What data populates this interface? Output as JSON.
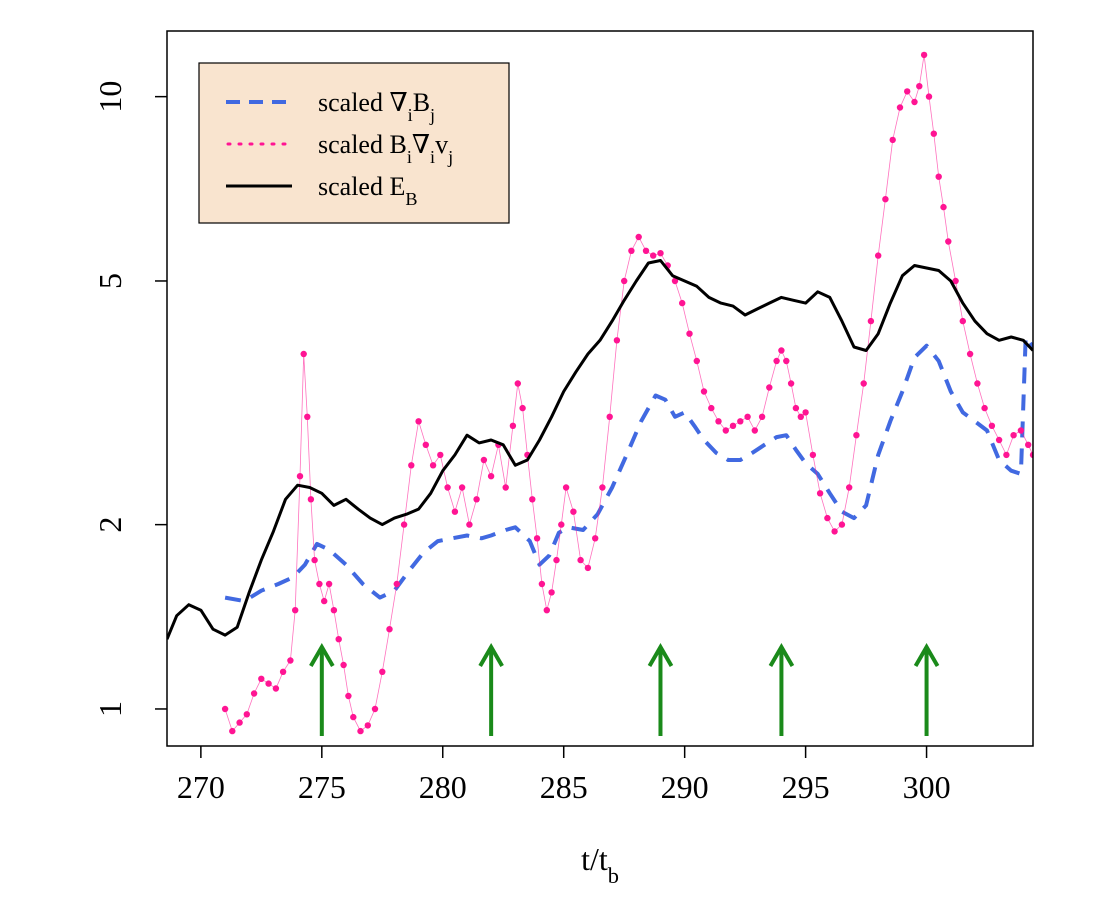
{
  "chart_data": {
    "type": "line",
    "xlabel": "t/t_b",
    "ylabel": "",
    "xlim": [
      268.6,
      304.4
    ],
    "ylim": [
      0.87,
      12.8
    ],
    "yscale": "log",
    "grid": false,
    "legend_placement": "top-left",
    "x_ticks": [
      270,
      275,
      280,
      285,
      290,
      295,
      300
    ],
    "y_ticks": [
      1,
      2,
      5,
      10
    ],
    "colors": {
      "grad_b": "#4169e1",
      "b_grad_v": "#ff1493",
      "energy": "#000000",
      "arrows": "#1a8a1a",
      "legend_bg": "#f9e4cf"
    },
    "legend": [
      {
        "parts": [
          [
            "scaled ∇",
            ""
          ],
          [
            "i",
            "sub"
          ],
          [
            "B",
            ""
          ],
          [
            "j",
            "sub"
          ]
        ]
      },
      {
        "parts": [
          [
            "scaled B",
            ""
          ],
          [
            "i",
            "sub"
          ],
          [
            "∇",
            ""
          ],
          [
            "i",
            "sub"
          ],
          [
            "v",
            ""
          ],
          [
            "j",
            "sub"
          ]
        ]
      },
      {
        "parts": [
          [
            "scaled E",
            ""
          ],
          [
            "B",
            "sub"
          ]
        ]
      }
    ],
    "x_label_parts": [
      [
        "t/t",
        ""
      ],
      [
        "b",
        "sub"
      ]
    ],
    "series": [
      {
        "key": "grad_b",
        "style": "dashed",
        "x": [
          271.0,
          271.8,
          272.5,
          273.2,
          273.8,
          274.3,
          274.8,
          275.3,
          276.0,
          276.7,
          277.4,
          278.0,
          278.6,
          279.2,
          279.8,
          280.4,
          281.0,
          281.6,
          282.0,
          282.6,
          283.0,
          283.6,
          284.0,
          284.4,
          284.8,
          285.2,
          285.8,
          286.4,
          287.0,
          287.6,
          288.2,
          288.8,
          289.2,
          289.6,
          290.0,
          290.4,
          290.8,
          291.3,
          291.8,
          292.3,
          292.8,
          293.3,
          293.8,
          294.2,
          294.6,
          295.0,
          295.5,
          296.0,
          296.5,
          297.0,
          297.5,
          298.0,
          298.5,
          299.0,
          299.5,
          300.0,
          300.5,
          301.0,
          301.5,
          302.0,
          302.5,
          303.0,
          303.5,
          303.9,
          304.1,
          304.4
        ],
        "y": [
          1.52,
          1.5,
          1.56,
          1.6,
          1.64,
          1.72,
          1.86,
          1.82,
          1.72,
          1.6,
          1.52,
          1.56,
          1.68,
          1.8,
          1.88,
          1.9,
          1.92,
          1.9,
          1.92,
          1.96,
          1.98,
          1.88,
          1.72,
          1.78,
          1.94,
          1.98,
          1.96,
          2.08,
          2.3,
          2.6,
          2.95,
          3.25,
          3.2,
          3.0,
          3.05,
          2.9,
          2.75,
          2.62,
          2.55,
          2.55,
          2.62,
          2.7,
          2.78,
          2.8,
          2.65,
          2.52,
          2.42,
          2.25,
          2.1,
          2.05,
          2.15,
          2.6,
          2.95,
          3.3,
          3.75,
          3.92,
          3.7,
          3.3,
          3.05,
          2.95,
          2.85,
          2.55,
          2.45,
          2.42,
          4.05,
          3.9
        ]
      },
      {
        "key": "b_grad_v",
        "style": "points",
        "x": [
          271.0,
          271.3,
          271.6,
          271.9,
          272.2,
          272.5,
          272.8,
          273.1,
          273.4,
          273.7,
          273.9,
          274.1,
          274.25,
          274.4,
          274.55,
          274.7,
          274.9,
          275.1,
          275.3,
          275.5,
          275.7,
          275.9,
          276.1,
          276.3,
          276.6,
          276.9,
          277.2,
          277.5,
          277.8,
          278.1,
          278.4,
          278.7,
          279.0,
          279.3,
          279.6,
          279.9,
          280.2,
          280.5,
          280.8,
          281.1,
          281.4,
          281.7,
          282.0,
          282.3,
          282.6,
          282.9,
          283.1,
          283.3,
          283.5,
          283.7,
          283.9,
          284.1,
          284.3,
          284.5,
          284.7,
          284.9,
          285.1,
          285.4,
          285.7,
          286.0,
          286.3,
          286.6,
          286.9,
          287.2,
          287.5,
          287.8,
          288.1,
          288.4,
          288.7,
          289.0,
          289.3,
          289.6,
          289.9,
          290.2,
          290.5,
          290.8,
          291.1,
          291.4,
          291.7,
          292.0,
          292.3,
          292.6,
          292.9,
          293.2,
          293.5,
          293.8,
          294.0,
          294.2,
          294.4,
          294.6,
          294.8,
          295.0,
          295.3,
          295.6,
          295.9,
          296.2,
          296.5,
          296.8,
          297.1,
          297.4,
          297.7,
          298.0,
          298.3,
          298.6,
          298.9,
          299.2,
          299.5,
          299.7,
          299.9,
          300.1,
          300.3,
          300.5,
          300.7,
          300.9,
          301.2,
          301.5,
          301.8,
          302.1,
          302.4,
          302.7,
          303.0,
          303.3,
          303.6,
          303.9,
          304.2,
          304.4
        ],
        "y": [
          1.0,
          0.92,
          0.95,
          0.98,
          1.06,
          1.12,
          1.1,
          1.08,
          1.15,
          1.2,
          1.45,
          2.4,
          3.8,
          3.0,
          2.2,
          1.75,
          1.6,
          1.5,
          1.6,
          1.45,
          1.3,
          1.18,
          1.05,
          0.97,
          0.92,
          0.94,
          1.0,
          1.15,
          1.35,
          1.6,
          2.0,
          2.5,
          2.95,
          2.7,
          2.5,
          2.6,
          2.3,
          2.1,
          2.3,
          2.0,
          2.2,
          2.55,
          2.4,
          2.7,
          2.3,
          2.9,
          3.4,
          3.1,
          2.6,
          2.2,
          1.9,
          1.6,
          1.45,
          1.55,
          1.75,
          2.0,
          2.3,
          2.1,
          1.75,
          1.7,
          1.9,
          2.3,
          3.0,
          4.0,
          5.0,
          5.6,
          5.9,
          5.6,
          5.5,
          5.55,
          5.3,
          5.0,
          4.6,
          4.1,
          3.7,
          3.3,
          3.1,
          2.95,
          2.85,
          2.9,
          2.95,
          3.0,
          2.85,
          3.0,
          3.35,
          3.7,
          3.85,
          3.7,
          3.4,
          3.1,
          3.0,
          3.05,
          2.6,
          2.25,
          2.05,
          1.95,
          2.0,
          2.3,
          2.8,
          3.4,
          4.3,
          5.5,
          6.8,
          8.5,
          9.6,
          10.2,
          9.8,
          10.4,
          11.7,
          10.0,
          8.7,
          7.4,
          6.6,
          5.8,
          5.0,
          4.3,
          3.8,
          3.4,
          3.1,
          2.9,
          2.75,
          2.6,
          2.8,
          2.85,
          2.7,
          2.6
        ]
      },
      {
        "key": "energy",
        "style": "solid",
        "x": [
          268.6,
          269.0,
          269.5,
          270.0,
          270.5,
          271.0,
          271.5,
          272.0,
          272.5,
          273.0,
          273.5,
          274.0,
          274.5,
          275.0,
          275.5,
          276.0,
          276.5,
          277.0,
          277.5,
          278.0,
          278.5,
          279.0,
          279.5,
          280.0,
          280.5,
          281.0,
          281.5,
          282.0,
          282.5,
          283.0,
          283.5,
          284.0,
          284.5,
          285.0,
          285.5,
          286.0,
          286.5,
          287.0,
          287.5,
          288.0,
          288.5,
          289.0,
          289.5,
          290.0,
          290.5,
          291.0,
          291.5,
          292.0,
          292.5,
          293.0,
          293.5,
          294.0,
          294.5,
          295.0,
          295.5,
          296.0,
          296.5,
          297.0,
          297.5,
          298.0,
          298.5,
          299.0,
          299.5,
          300.0,
          300.5,
          301.0,
          301.5,
          302.0,
          302.5,
          303.0,
          303.5,
          304.0,
          304.4
        ],
        "y": [
          1.3,
          1.42,
          1.48,
          1.45,
          1.35,
          1.32,
          1.36,
          1.55,
          1.75,
          1.95,
          2.2,
          2.32,
          2.3,
          2.25,
          2.15,
          2.2,
          2.12,
          2.05,
          2.0,
          2.05,
          2.08,
          2.12,
          2.25,
          2.45,
          2.6,
          2.8,
          2.72,
          2.75,
          2.7,
          2.5,
          2.55,
          2.75,
          3.0,
          3.3,
          3.55,
          3.8,
          4.0,
          4.3,
          4.65,
          5.0,
          5.35,
          5.4,
          5.1,
          5.0,
          4.9,
          4.7,
          4.6,
          4.55,
          4.4,
          4.5,
          4.6,
          4.7,
          4.65,
          4.6,
          4.8,
          4.7,
          4.3,
          3.9,
          3.85,
          4.1,
          4.6,
          5.1,
          5.3,
          5.25,
          5.2,
          5.0,
          4.6,
          4.3,
          4.1,
          4.0,
          4.05,
          4.0,
          3.85
        ]
      }
    ],
    "arrows_x": [
      275,
      282,
      289,
      294,
      300
    ]
  }
}
